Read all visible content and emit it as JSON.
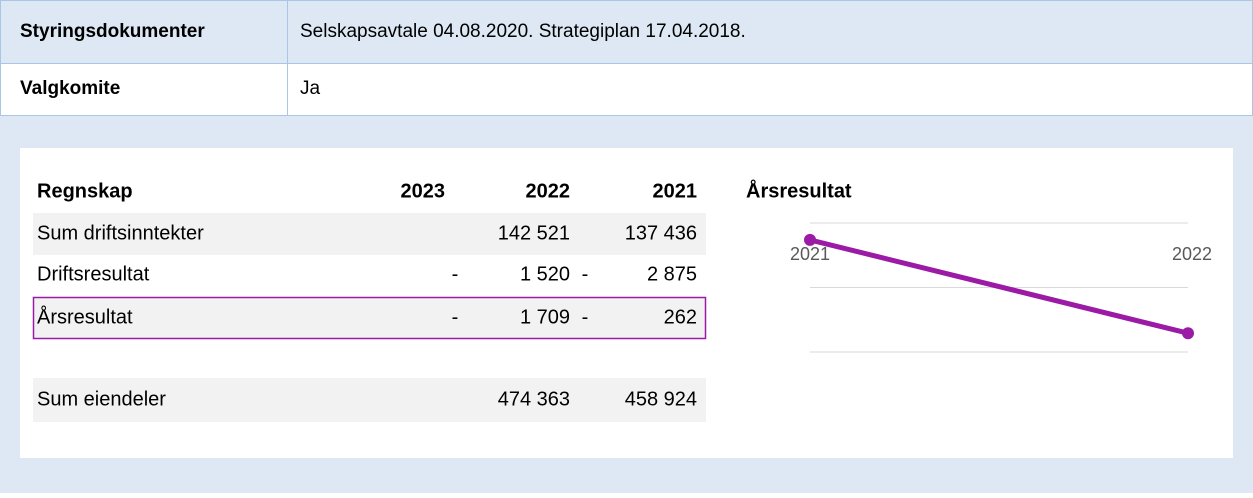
{
  "info": {
    "rows": [
      {
        "label": "Styringsdokumenter",
        "value": "Selskapsavtale 04.08.2020. Strategiplan 17.04.2018."
      },
      {
        "label": "Valgkomite",
        "value": "Ja"
      }
    ]
  },
  "table": {
    "headers": [
      "Regnskap",
      "2023",
      "2022",
      "2021"
    ],
    "income_rows": [
      {
        "label": "Sum driftsinntekter",
        "cells": [
          null,
          {
            "amount": "142 521"
          },
          {
            "amount": "137 436"
          }
        ]
      },
      {
        "label": "Driftsresultat",
        "cells": [
          null,
          {
            "sign": "-",
            "amount": "1 520"
          },
          {
            "sign": "-",
            "amount": "2 875"
          }
        ]
      },
      {
        "label": "Årsresultat",
        "highlight": true,
        "cells": [
          null,
          {
            "sign": "-",
            "amount": "1 709"
          },
          {
            "sign": "-",
            "amount": "262"
          }
        ]
      }
    ],
    "balance_rows": [
      {
        "label": "Sum eiendeler",
        "cells": [
          null,
          {
            "amount": "474 363"
          },
          {
            "amount": "458 924"
          }
        ]
      }
    ]
  },
  "chart_data": {
    "type": "line",
    "title": "Årsresultat",
    "categories": [
      "2021",
      "2022"
    ],
    "series": [
      {
        "name": "Årsresultat",
        "color": "#9b1aa6",
        "values": [
          -262,
          -1709
        ]
      }
    ],
    "ylim": [
      -2000,
      0
    ],
    "yticks": [
      -2000,
      -1000,
      0
    ],
    "grid": true
  }
}
